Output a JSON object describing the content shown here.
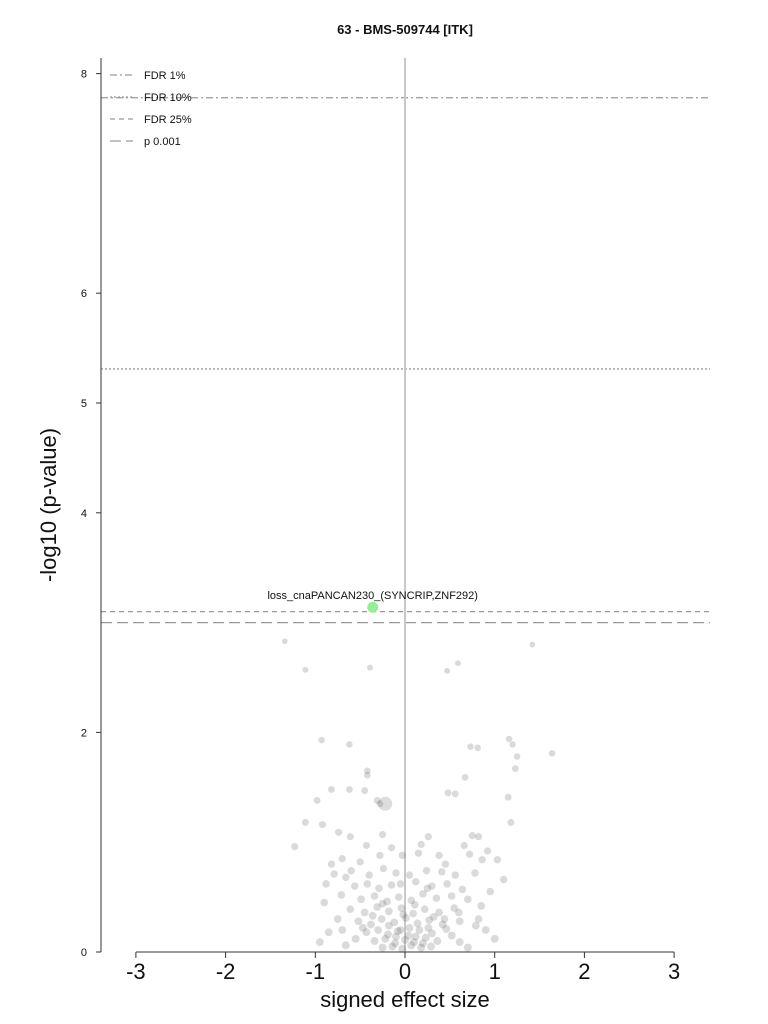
{
  "chart_data": {
    "type": "scatter",
    "title": "63 - BMS-509744 [ITK]",
    "xlabel": "signed effect size",
    "ylabel": "-log10 (p-value)",
    "xlim": [
      -3.35,
      3.4
    ],
    "ylim": [
      0,
      8.2
    ],
    "xticks": [
      "-3",
      "-2",
      "-1",
      "0",
      "1",
      "2",
      "3"
    ],
    "yticks": [
      "0",
      "2",
      "4",
      "5",
      "6",
      "8"
    ],
    "grid": false,
    "legend_position": "top-left",
    "legend": [
      {
        "label": "FDR 1%",
        "style": "dashdot"
      },
      {
        "label": "FDR 10%",
        "style": "dotted"
      },
      {
        "label": "FDR 25%",
        "style": "dashed"
      },
      {
        "label": "p 0.001",
        "style": "longdash"
      }
    ],
    "thresholds": [
      {
        "label": "FDR 1%",
        "y": 7.78
      },
      {
        "label": "FDR 10%",
        "y": 5.31
      },
      {
        "label": "FDR 25%",
        "y": 3.1
      },
      {
        "label": "p 0.001",
        "y": 3.0
      }
    ],
    "highlight": {
      "label": "loss_cnaPANCAN230_(SYNCRIP,ZNF292)",
      "x": -0.36,
      "y": 3.14,
      "color": "#90ee90"
    },
    "point_color": "#555555",
    "points": [
      [
        -1.34,
        2.83
      ],
      [
        -1.11,
        2.57
      ],
      [
        -0.39,
        2.59
      ],
      [
        0.47,
        2.56
      ],
      [
        0.59,
        2.63
      ],
      [
        1.42,
        2.8
      ],
      [
        -0.93,
        1.93
      ],
      [
        -0.62,
        1.89
      ],
      [
        0.73,
        1.87
      ],
      [
        0.81,
        1.86
      ],
      [
        1.16,
        1.94
      ],
      [
        1.2,
        1.89
      ],
      [
        1.25,
        1.78
      ],
      [
        1.64,
        1.81
      ],
      [
        -0.42,
        1.65
      ],
      [
        -0.42,
        1.61
      ],
      [
        1.23,
        1.67
      ],
      [
        0.67,
        1.59
      ],
      [
        -0.62,
        1.48
      ],
      [
        -0.82,
        1.48
      ],
      [
        -0.45,
        1.47
      ],
      [
        0.48,
        1.45
      ],
      [
        0.56,
        1.44
      ],
      [
        1.15,
        1.41
      ],
      [
        -0.98,
        1.38
      ],
      [
        -0.28,
        1.35
      ],
      [
        -0.31,
        1.38
      ],
      [
        -1.11,
        1.18
      ],
      [
        -0.92,
        1.16
      ],
      [
        1.18,
        1.18
      ],
      [
        -0.74,
        1.09
      ],
      [
        -0.61,
        1.05
      ],
      [
        -0.25,
        1.07
      ],
      [
        0.26,
        1.05
      ],
      [
        0.75,
        1.06
      ],
      [
        0.82,
        1.05
      ],
      [
        -1.23,
        0.96
      ],
      [
        -0.43,
        0.97
      ],
      [
        0.15,
        0.9
      ],
      [
        0.66,
        0.97
      ],
      [
        0.92,
        0.92
      ],
      [
        0.72,
        0.89
      ],
      [
        -0.82,
        0.8
      ],
      [
        -0.7,
        0.85
      ],
      [
        -0.5,
        0.82
      ],
      [
        -0.28,
        0.88
      ],
      [
        -0.03,
        0.88
      ],
      [
        0.38,
        0.88
      ],
      [
        0.86,
        0.84
      ],
      [
        1.03,
        0.84
      ],
      [
        -0.79,
        0.71
      ],
      [
        -0.66,
        0.68
      ],
      [
        -0.4,
        0.7
      ],
      [
        -0.24,
        0.76
      ],
      [
        -0.1,
        0.72
      ],
      [
        0.05,
        0.7
      ],
      [
        0.24,
        0.74
      ],
      [
        0.41,
        0.73
      ],
      [
        0.56,
        0.7
      ],
      [
        0.78,
        0.72
      ],
      [
        -0.56,
        0.6
      ],
      [
        -0.42,
        0.62
      ],
      [
        -0.29,
        0.58
      ],
      [
        -0.15,
        0.61
      ],
      [
        0.12,
        0.64
      ],
      [
        0.3,
        0.6
      ],
      [
        0.47,
        0.62
      ],
      [
        0.64,
        0.57
      ],
      [
        -0.71,
        0.52
      ],
      [
        -0.49,
        0.48
      ],
      [
        -0.34,
        0.51
      ],
      [
        -0.2,
        0.46
      ],
      [
        -0.07,
        0.5
      ],
      [
        0.07,
        0.47
      ],
      [
        0.2,
        0.53
      ],
      [
        0.35,
        0.49
      ],
      [
        0.52,
        0.51
      ],
      [
        0.7,
        0.48
      ],
      [
        0.95,
        0.55
      ],
      [
        -0.61,
        0.39
      ],
      [
        -0.45,
        0.36
      ],
      [
        -0.31,
        0.41
      ],
      [
        -0.18,
        0.37
      ],
      [
        -0.04,
        0.4
      ],
      [
        0.09,
        0.35
      ],
      [
        0.22,
        0.39
      ],
      [
        0.38,
        0.36
      ],
      [
        0.55,
        0.4
      ],
      [
        0.85,
        0.42
      ],
      [
        -0.75,
        0.3
      ],
      [
        -0.52,
        0.28
      ],
      [
        -0.38,
        0.25
      ],
      [
        -0.26,
        0.3
      ],
      [
        -0.12,
        0.27
      ],
      [
        0.01,
        0.31
      ],
      [
        0.14,
        0.26
      ],
      [
        0.27,
        0.29
      ],
      [
        0.42,
        0.25
      ],
      [
        0.61,
        0.28
      ],
      [
        0.79,
        0.24
      ],
      [
        -0.43,
        0.18
      ],
      [
        -0.3,
        0.2
      ],
      [
        -0.19,
        0.16
      ],
      [
        -0.08,
        0.19
      ],
      [
        0.04,
        0.15
      ],
      [
        0.16,
        0.2
      ],
      [
        0.3,
        0.17
      ],
      [
        0.46,
        0.21
      ],
      [
        -0.34,
        0.1
      ],
      [
        -0.22,
        0.12
      ],
      [
        -0.11,
        0.08
      ],
      [
        0.0,
        0.11
      ],
      [
        0.1,
        0.09
      ],
      [
        0.23,
        0.13
      ],
      [
        0.36,
        0.1
      ],
      [
        -0.25,
        0.04
      ],
      [
        -0.14,
        0.05
      ],
      [
        -0.03,
        0.03
      ],
      [
        0.07,
        0.06
      ],
      [
        0.18,
        0.04
      ],
      [
        0.29,
        0.05
      ],
      [
        -0.05,
        0.2
      ],
      [
        0.05,
        0.22
      ],
      [
        -0.1,
        0.14
      ],
      [
        0.12,
        0.14
      ],
      [
        0.2,
        0.08
      ],
      [
        -0.18,
        0.24
      ],
      [
        0.26,
        0.22
      ],
      [
        -0.02,
        0.34
      ],
      [
        0.32,
        0.32
      ],
      [
        -0.36,
        0.33
      ],
      [
        0.11,
        0.43
      ],
      [
        -0.25,
        0.44
      ],
      [
        0.44,
        0.3
      ],
      [
        -0.47,
        0.22
      ],
      [
        0.52,
        0.15
      ],
      [
        -0.55,
        0.12
      ],
      [
        0.61,
        0.09
      ],
      [
        -0.66,
        0.06
      ],
      [
        0.7,
        0.04
      ],
      [
        -0.85,
        0.18
      ],
      [
        0.9,
        0.2
      ],
      [
        -0.95,
        0.09
      ],
      [
        1.0,
        0.12
      ],
      [
        -0.6,
        0.74
      ],
      [
        0.45,
        0.8
      ],
      [
        -0.15,
        0.95
      ],
      [
        0.18,
        0.98
      ],
      [
        -0.88,
        0.62
      ],
      [
        1.1,
        0.66
      ],
      [
        0.6,
        0.36
      ],
      [
        -0.7,
        0.2
      ],
      [
        0.82,
        0.3
      ],
      [
        -0.9,
        0.45
      ],
      [
        0.25,
        0.58
      ],
      [
        -0.05,
        0.62
      ]
    ]
  }
}
